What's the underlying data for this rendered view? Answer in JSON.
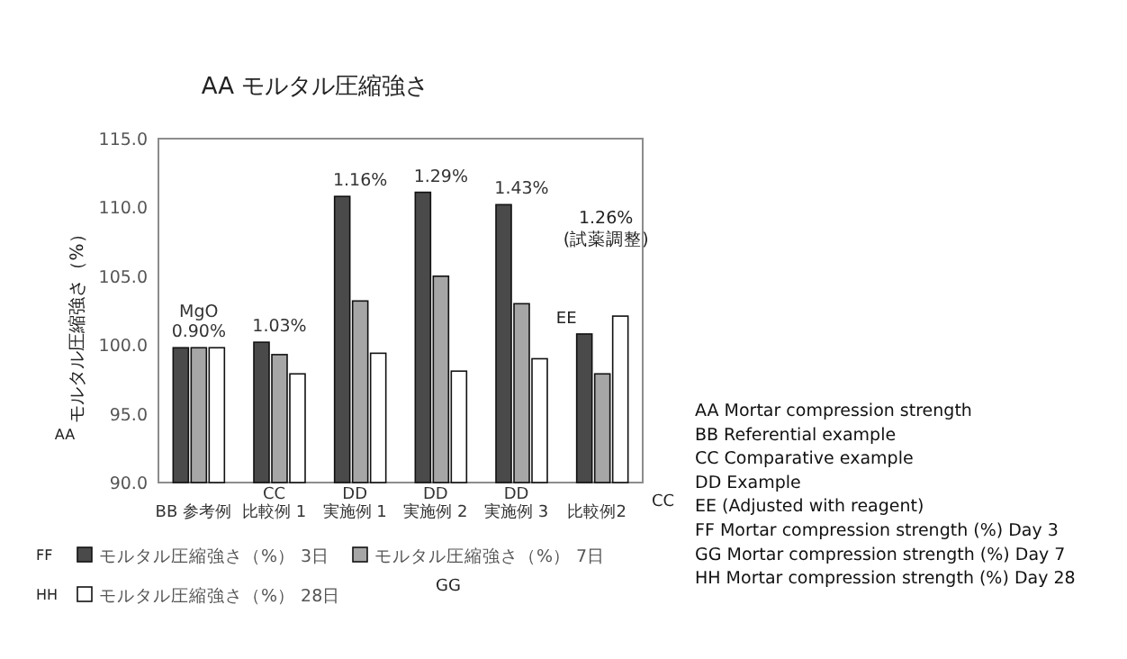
{
  "chart_data": {
    "type": "bar",
    "title": "AA モルタル圧縮強さ",
    "ylabel": "モルタル圧縮強さ（%）",
    "categories": [
      "BB 参考例",
      "CC\n比較例 1",
      "DD\n実施例 1",
      "DD\n実施例 2",
      "DD\n実施例 3",
      "比較例2"
    ],
    "series": [
      {
        "name": "モルタル圧縮強さ（%） 3日",
        "color": "#4a4a4a",
        "values": [
          99.8,
          100.2,
          110.8,
          111.1,
          110.2,
          100.8
        ]
      },
      {
        "name": "モルタル圧縮強さ（%） 7日",
        "color": "#a6a6a6",
        "values": [
          99.8,
          99.3,
          103.2,
          105.0,
          103.0,
          97.9
        ]
      },
      {
        "name": "モルタル圧縮強さ（%） 28日",
        "color": "#ffffff",
        "values": [
          99.8,
          97.9,
          99.4,
          98.1,
          99.0,
          102.1
        ]
      }
    ],
    "ylim": [
      90,
      115
    ],
    "yticks": [
      {
        "value": 90,
        "label": "90.0"
      },
      {
        "value": 95,
        "label": "95.0"
      },
      {
        "value": 100,
        "label": "100.0"
      },
      {
        "value": 105,
        "label": "105.0"
      },
      {
        "value": 110,
        "label": "110.0"
      },
      {
        "value": 115,
        "label": "115.0"
      }
    ],
    "grid": false,
    "legend": "bottom",
    "annotations": [
      {
        "text": "MgO\n0.90%",
        "x": "BB 参考例",
        "y": 99.8
      },
      {
        "text": "1.03%",
        "x": "CC\n比較例 1",
        "y": 100.2
      },
      {
        "text": "1.16%",
        "x": "DD\n実施例 1",
        "y": 110.8
      },
      {
        "text": "1.29%",
        "x": "DD\n実施例 2",
        "y": 111.1
      },
      {
        "text": "1.43%",
        "x": "DD\n実施例 3",
        "y": 110.2
      },
      "1.26%\n(試薬調整)",
      {
        "text": "EE",
        "x": "比較例2",
        "y": 100.8
      },
      "AA",
      "CC",
      "FF",
      "GG",
      "HH",
      "AA Mortar compression strength",
      "BB Referential example",
      "CC    Comparative example",
      "DD    Example",
      "EE (Adjusted with reagent)",
      "FF Mortar compression strength (%) Day 3",
      "GG    Mortar compression strength (%) Day 7",
      "HH    Mortar compression strength (%) Day 28"
    ]
  }
}
